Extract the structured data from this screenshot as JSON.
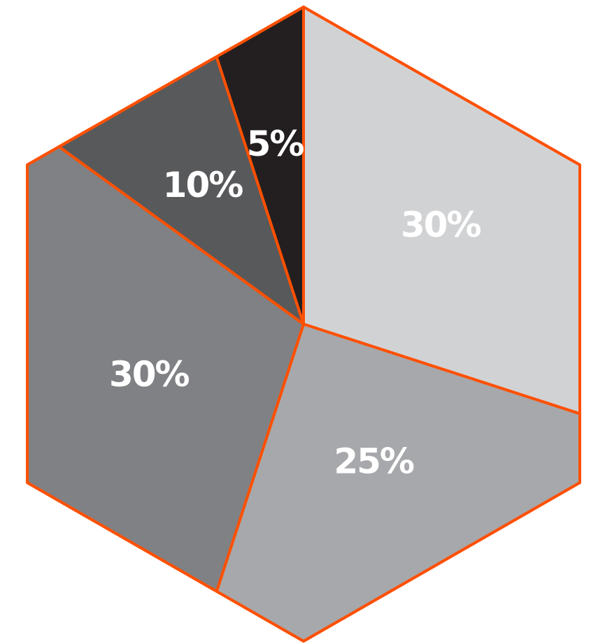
{
  "chart_data": {
    "type": "pie",
    "shape": "hexagon",
    "start_angle": "12 o'clock",
    "direction": "clockwise",
    "slices": [
      {
        "label": "30%",
        "value": 30,
        "color": "#d1d2d4"
      },
      {
        "label": "25%",
        "value": 25,
        "color": "#a7a8ab"
      },
      {
        "label": "30%",
        "value": 30,
        "color": "#808184"
      },
      {
        "label": "10%",
        "value": 10,
        "color": "#58595b"
      },
      {
        "label": "5%",
        "value": 5,
        "color": "#231f20"
      }
    ],
    "colors": {
      "outline": "#ff5000",
      "label_text": "#ffffff"
    }
  }
}
